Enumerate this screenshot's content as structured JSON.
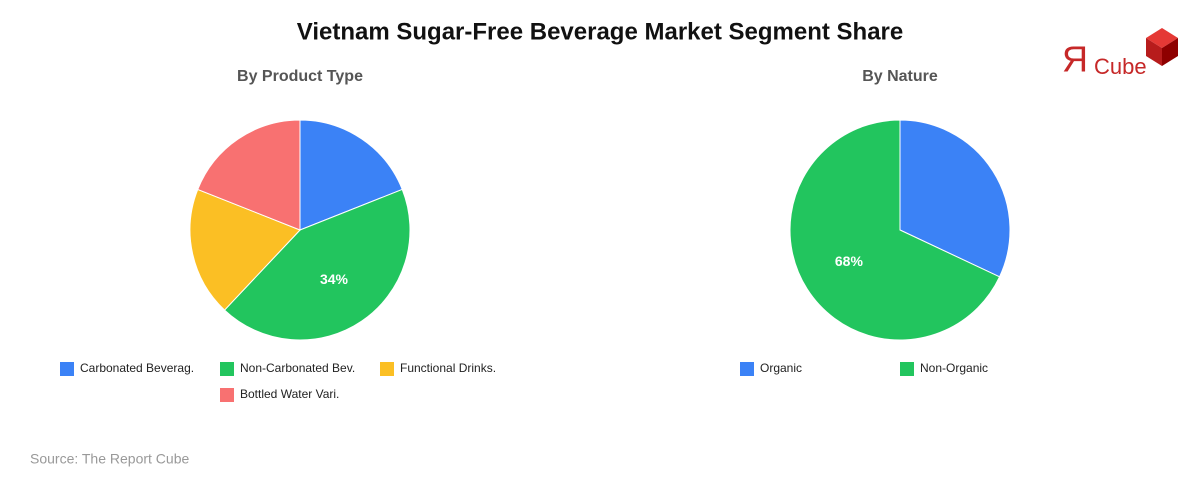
{
  "title": "Vietnam Sugar-Free Beverage Market Segment Share",
  "logo": {
    "mark": "Я",
    "text": "Cube"
  },
  "source": "Source: The Report Cube",
  "chart_data": [
    {
      "type": "pie",
      "title": "By Product Type",
      "categories": [
        "Carbonated Beverag.",
        "Non-Carbonated Bev.",
        "Functional Drinks.",
        "Bottled Water Vari."
      ],
      "values": [
        15,
        34,
        15,
        15
      ],
      "value_labels": [
        null,
        "34%",
        null,
        null
      ],
      "colors": [
        "#3b82f6",
        "#22c55e",
        "#fbbf24",
        "#f87171"
      ]
    },
    {
      "type": "pie",
      "title": "By Nature",
      "categories": [
        "Organic",
        "Non-Organic"
      ],
      "values": [
        32,
        68
      ],
      "value_labels": [
        null,
        "68%"
      ],
      "colors": [
        "#3b82f6",
        "#22c55e"
      ]
    }
  ]
}
